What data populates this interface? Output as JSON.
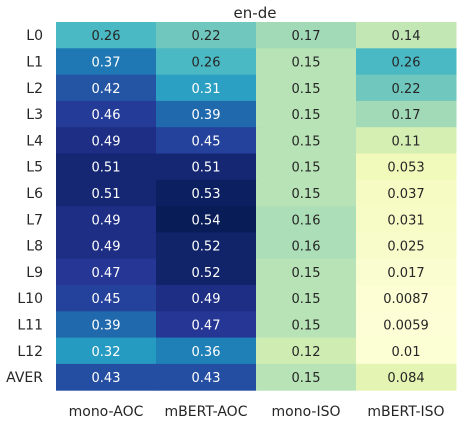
{
  "chart_data": {
    "type": "heatmap",
    "title": "en-de",
    "columns": [
      "mono-AOC",
      "mBERT-AOC",
      "mono-ISO",
      "mBERT-ISO"
    ],
    "rows": [
      "L0",
      "L1",
      "L2",
      "L3",
      "L4",
      "L5",
      "L6",
      "L7",
      "L8",
      "L9",
      "L10",
      "L11",
      "L12",
      "AVER"
    ],
    "values": [
      [
        "0.26",
        "0.22",
        "0.17",
        "0.14"
      ],
      [
        "0.37",
        "0.26",
        "0.15",
        "0.26"
      ],
      [
        "0.42",
        "0.31",
        "0.15",
        "0.22"
      ],
      [
        "0.46",
        "0.39",
        "0.15",
        "0.17"
      ],
      [
        "0.49",
        "0.45",
        "0.15",
        "0.11"
      ],
      [
        "0.51",
        "0.51",
        "0.15",
        "0.053"
      ],
      [
        "0.51",
        "0.53",
        "0.15",
        "0.037"
      ],
      [
        "0.49",
        "0.54",
        "0.16",
        "0.031"
      ],
      [
        "0.49",
        "0.52",
        "0.16",
        "0.025"
      ],
      [
        "0.47",
        "0.52",
        "0.15",
        "0.017"
      ],
      [
        "0.45",
        "0.49",
        "0.15",
        "0.0087"
      ],
      [
        "0.39",
        "0.47",
        "0.15",
        "0.0059"
      ],
      [
        "0.32",
        "0.36",
        "0.12",
        "0.01"
      ],
      [
        "0.43",
        "0.43",
        "0.15",
        "0.084"
      ]
    ],
    "colormap": "YlGnBu",
    "vmin": 0,
    "vmax": 0.54,
    "legend": "none"
  }
}
